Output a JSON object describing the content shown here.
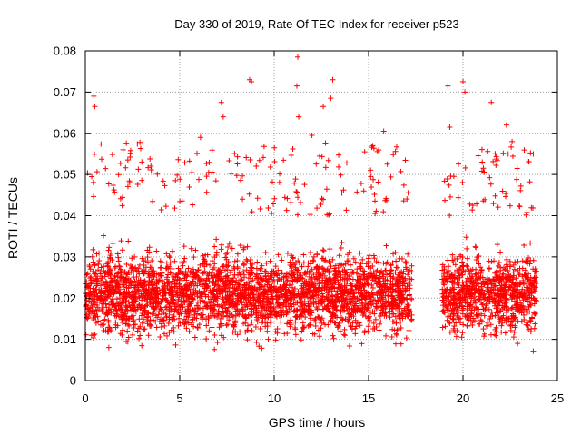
{
  "chart_data": {
    "type": "scatter",
    "title": "Day 330 of 2019, Rate Of TEC Index for receiver p523",
    "xlabel": "GPS time / hours",
    "ylabel": "ROTI / TECUs",
    "xlim": [
      0,
      25
    ],
    "ylim": [
      0,
      0.08
    ],
    "x_ticks": [
      "0",
      "5",
      "10",
      "15",
      "20",
      "25"
    ],
    "y_ticks": [
      "0",
      "0.01",
      "0.02",
      "0.03",
      "0.04",
      "0.05",
      "0.06",
      "0.07",
      "0.08"
    ],
    "grid": true,
    "marker": "+",
    "color": "#ff0000",
    "data_gap_hours": [
      17.3,
      18.9
    ],
    "upper_outliers": [
      {
        "x": 0.45,
        "y": 0.069
      },
      {
        "x": 0.5,
        "y": 0.0665
      },
      {
        "x": 7.2,
        "y": 0.0675
      },
      {
        "x": 7.3,
        "y": 0.064
      },
      {
        "x": 8.7,
        "y": 0.073
      },
      {
        "x": 8.8,
        "y": 0.0725
      },
      {
        "x": 11.25,
        "y": 0.0785
      },
      {
        "x": 11.2,
        "y": 0.0715
      },
      {
        "x": 11.3,
        "y": 0.064
      },
      {
        "x": 12.6,
        "y": 0.0665
      },
      {
        "x": 13.1,
        "y": 0.073
      },
      {
        "x": 13.0,
        "y": 0.0685
      },
      {
        "x": 15.8,
        "y": 0.0605
      },
      {
        "x": 19.2,
        "y": 0.0715
      },
      {
        "x": 19.3,
        "y": 0.0615
      },
      {
        "x": 20.0,
        "y": 0.0725
      },
      {
        "x": 20.1,
        "y": 0.07
      },
      {
        "x": 21.5,
        "y": 0.0675
      },
      {
        "x": 22.3,
        "y": 0.062
      },
      {
        "x": 22.6,
        "y": 0.058
      },
      {
        "x": 12.0,
        "y": 0.0595
      },
      {
        "x": 6.1,
        "y": 0.059
      },
      {
        "x": 2.0,
        "y": 0.056
      }
    ],
    "segments": [
      {
        "x_start": 0.0,
        "x_end": 17.3,
        "typical_y": [
          0.008,
          0.04
        ],
        "max_y": 0.0785,
        "min_y": 0.0035
      },
      {
        "x_start": 18.9,
        "x_end": 23.9,
        "typical_y": [
          0.008,
          0.04
        ],
        "max_y": 0.0725,
        "min_y": 0.0035
      }
    ]
  }
}
